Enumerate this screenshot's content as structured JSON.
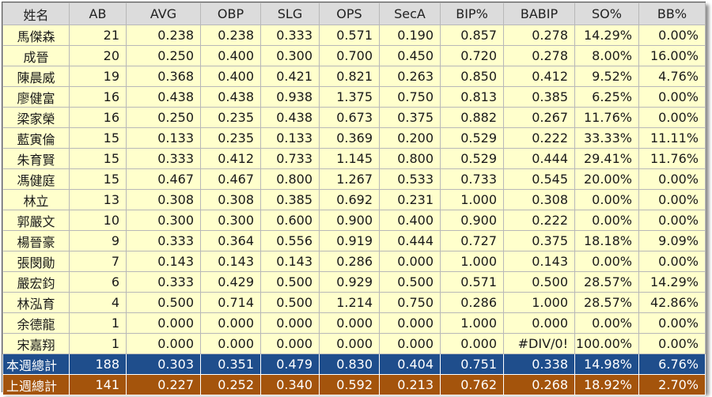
{
  "columns": [
    "姓名",
    "AB",
    "AVG",
    "OBP",
    "SLG",
    "OPS",
    "SecA",
    "BIP%",
    "BABIP",
    "SO%",
    "BB%"
  ],
  "rows": [
    [
      "馬傑森",
      "21",
      "0.238",
      "0.238",
      "0.333",
      "0.571",
      "0.190",
      "0.857",
      "0.278",
      "14.29%",
      "0.00%"
    ],
    [
      "成晉",
      "20",
      "0.250",
      "0.400",
      "0.300",
      "0.700",
      "0.450",
      "0.720",
      "0.278",
      "8.00%",
      "16.00%"
    ],
    [
      "陳晨威",
      "19",
      "0.368",
      "0.400",
      "0.421",
      "0.821",
      "0.263",
      "0.850",
      "0.412",
      "9.52%",
      "4.76%"
    ],
    [
      "廖健富",
      "16",
      "0.438",
      "0.438",
      "0.938",
      "1.375",
      "0.750",
      "0.813",
      "0.385",
      "6.25%",
      "0.00%"
    ],
    [
      "梁家榮",
      "16",
      "0.250",
      "0.235",
      "0.438",
      "0.673",
      "0.375",
      "0.882",
      "0.267",
      "11.76%",
      "0.00%"
    ],
    [
      "藍寅倫",
      "15",
      "0.133",
      "0.235",
      "0.133",
      "0.369",
      "0.200",
      "0.529",
      "0.222",
      "33.33%",
      "11.11%"
    ],
    [
      "朱育賢",
      "15",
      "0.333",
      "0.412",
      "0.733",
      "1.145",
      "0.800",
      "0.529",
      "0.444",
      "29.41%",
      "11.76%"
    ],
    [
      "馮健庭",
      "15",
      "0.467",
      "0.467",
      "0.800",
      "1.267",
      "0.533",
      "0.733",
      "0.545",
      "20.00%",
      "0.00%"
    ],
    [
      "林立",
      "13",
      "0.308",
      "0.308",
      "0.385",
      "0.692",
      "0.231",
      "1.000",
      "0.308",
      "0.00%",
      "0.00%"
    ],
    [
      "郭嚴文",
      "10",
      "0.300",
      "0.300",
      "0.600",
      "0.900",
      "0.400",
      "0.900",
      "0.222",
      "0.00%",
      "0.00%"
    ],
    [
      "楊晉豪",
      "9",
      "0.333",
      "0.364",
      "0.556",
      "0.919",
      "0.444",
      "0.727",
      "0.375",
      "18.18%",
      "9.09%"
    ],
    [
      "張閔勛",
      "7",
      "0.143",
      "0.143",
      "0.143",
      "0.286",
      "0.000",
      "1.000",
      "0.143",
      "0.00%",
      "0.00%"
    ],
    [
      "嚴宏鈞",
      "6",
      "0.333",
      "0.429",
      "0.500",
      "0.929",
      "0.500",
      "0.571",
      "0.500",
      "28.57%",
      "14.29%"
    ],
    [
      "林泓育",
      "4",
      "0.500",
      "0.714",
      "0.500",
      "1.214",
      "0.750",
      "0.286",
      "1.000",
      "28.57%",
      "42.86%"
    ],
    [
      "余德龍",
      "1",
      "0.000",
      "0.000",
      "0.000",
      "0.000",
      "0.000",
      "1.000",
      "0.000",
      "0.00%",
      "0.00%"
    ],
    [
      "宋嘉翔",
      "1",
      "0.000",
      "0.000",
      "0.000",
      "0.000",
      "0.000",
      "0.000",
      "#DIV/0!",
      "100.00%",
      "0.00%"
    ]
  ],
  "summary": {
    "this_week": [
      "本週總計",
      "188",
      "0.303",
      "0.351",
      "0.479",
      "0.830",
      "0.404",
      "0.751",
      "0.338",
      "14.98%",
      "6.76%"
    ],
    "last_week": [
      "上週總計",
      "141",
      "0.227",
      "0.252",
      "0.340",
      "0.592",
      "0.213",
      "0.762",
      "0.268",
      "18.92%",
      "2.70%"
    ]
  },
  "colors": {
    "cell_background": "#ffffcc",
    "header_background": "#dcdcdc",
    "this_week_background": "#1f4e8c",
    "last_week_background": "#a4540c"
  }
}
